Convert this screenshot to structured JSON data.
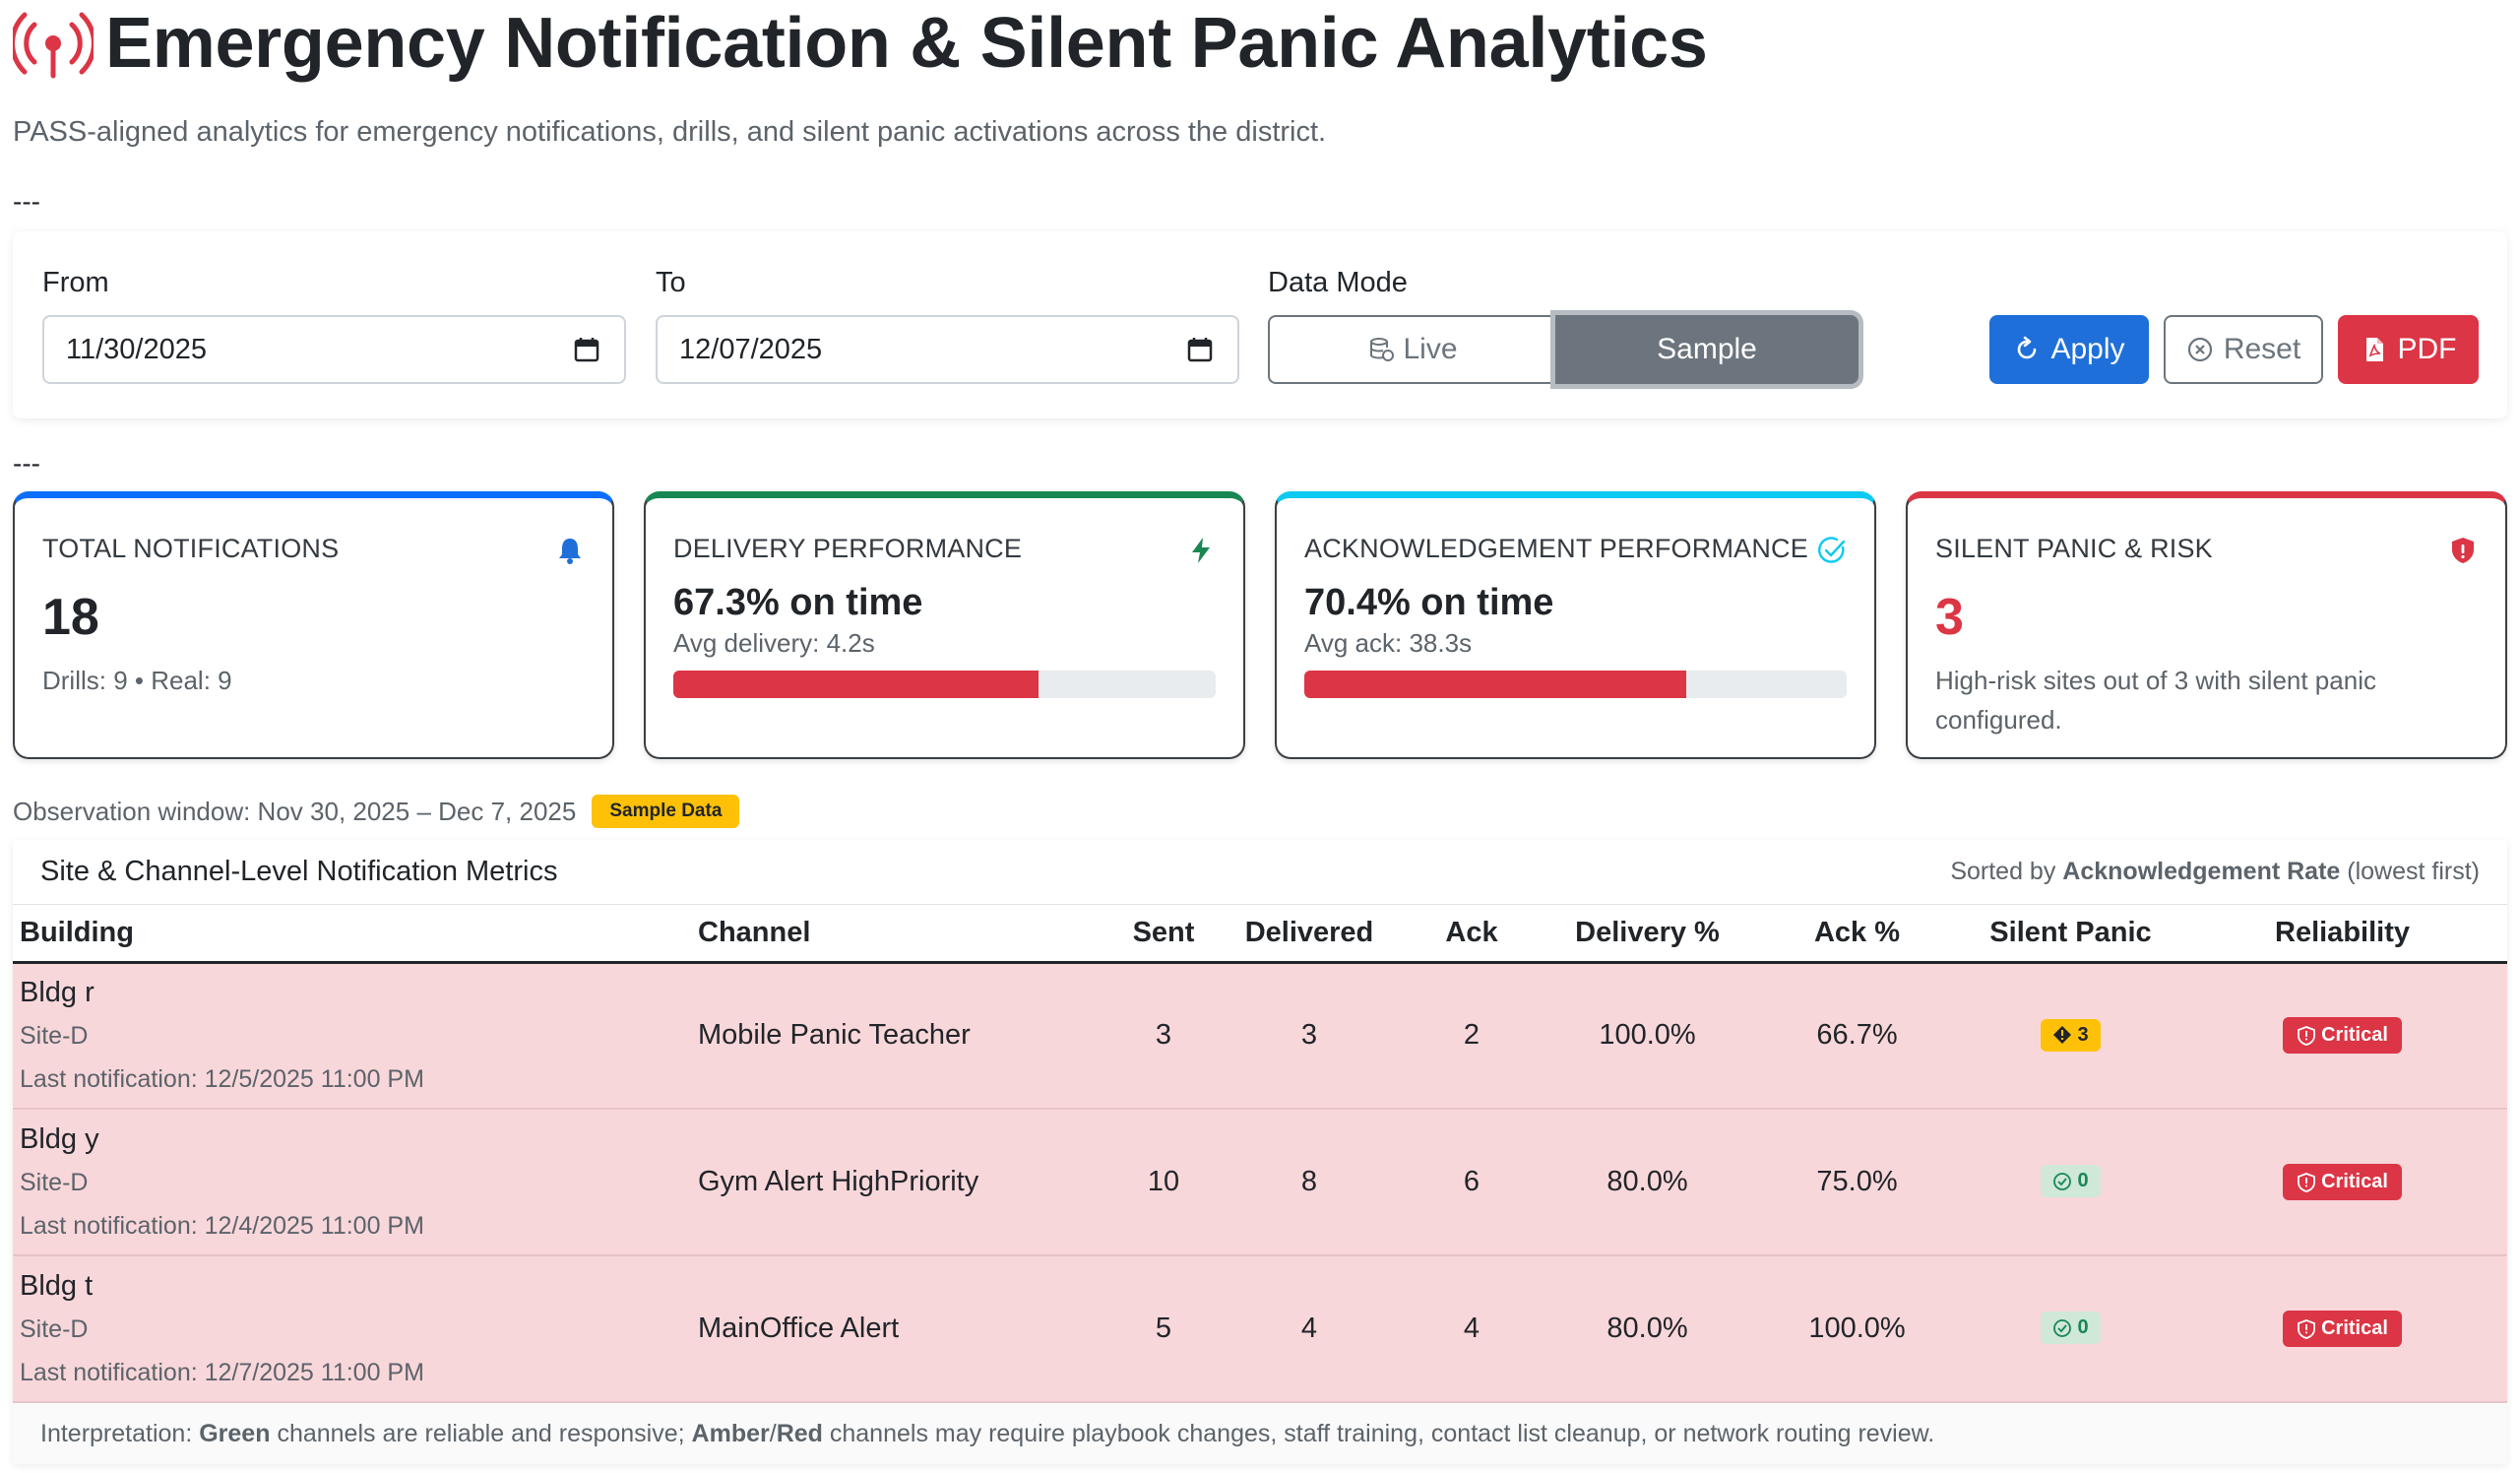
{
  "header": {
    "title": "Emergency Notification & Silent Panic Analytics",
    "subtitle": "PASS-aligned analytics for emergency notifications, drills, and silent panic activations across the district.",
    "divider": "---"
  },
  "filters": {
    "from_label": "From",
    "from_value": "11/30/2025",
    "to_label": "To",
    "to_value": "12/07/2025",
    "mode_label": "Data Mode",
    "mode_live": "Live",
    "mode_sample": "Sample",
    "apply_label": "Apply",
    "reset_label": "Reset",
    "pdf_label": "PDF"
  },
  "kpis": {
    "total": {
      "label": "TOTAL NOTIFICATIONS",
      "value": "18",
      "sub": "Drills: 9 • Real: 9",
      "icon": "bell-icon"
    },
    "delivery": {
      "label": "DELIVERY PERFORMANCE",
      "value": "67.3% on time",
      "sub": "Avg delivery: 4.2s",
      "progress": 0.673,
      "icon": "lightning-icon"
    },
    "ack": {
      "label": "ACKNOWLEDGEMENT PERFORMANCE",
      "value": "70.4% on time",
      "sub": "Avg ack: 38.3s",
      "progress": 0.704,
      "icon": "check-circle-icon"
    },
    "panic": {
      "label": "SILENT PANIC & RISK",
      "value": "3",
      "sub": "High-risk sites out of 3 with silent panic configured.",
      "icon": "shield-alert-icon"
    }
  },
  "observation": {
    "text": "Observation window: Nov 30, 2025 – Dec 7, 2025",
    "badge": "Sample Data"
  },
  "table": {
    "title": "Site & Channel-Level Notification Metrics",
    "sort_prefix": "Sorted by",
    "sort_field": "Acknowledgement Rate",
    "sort_suffix": "(lowest first)",
    "columns": [
      "Building",
      "Channel",
      "Sent",
      "Delivered",
      "Ack",
      "Delivery %",
      "Ack %",
      "Silent Panic",
      "Reliability"
    ],
    "rows": [
      {
        "building": "Bldg r",
        "site": "Site-D",
        "last": "Last notification: 12/5/2025 11:00 PM",
        "channel": "Mobile Panic Teacher",
        "sent": "3",
        "delivered": "3",
        "ack": "2",
        "delivery_pct": "100.0%",
        "ack_pct": "66.7%",
        "panic": "3",
        "panic_state": "warn",
        "reliability": "Critical"
      },
      {
        "building": "Bldg y",
        "site": "Site-D",
        "last": "Last notification: 12/4/2025 11:00 PM",
        "channel": "Gym Alert HighPriority",
        "sent": "10",
        "delivered": "8",
        "ack": "6",
        "delivery_pct": "80.0%",
        "ack_pct": "75.0%",
        "panic": "0",
        "panic_state": "ok",
        "reliability": "Critical"
      },
      {
        "building": "Bldg t",
        "site": "Site-D",
        "last": "Last notification: 12/7/2025 11:00 PM",
        "channel": "MainOffice Alert",
        "sent": "5",
        "delivered": "4",
        "ack": "4",
        "delivery_pct": "80.0%",
        "ack_pct": "100.0%",
        "panic": "0",
        "panic_state": "ok",
        "reliability": "Critical"
      }
    ],
    "interpretation": {
      "prefix": "Interpretation:",
      "green": "Green",
      "mid": "channels are reliable and responsive;",
      "amber": "Amber",
      "slash": "/",
      "red": "Red",
      "suffix": "channels may require playbook changes, staff training, contact list cleanup, or network routing review."
    }
  },
  "colors": {
    "primary": "#1e6fd9",
    "danger": "#dc3545",
    "warning": "#ffc107",
    "success": "#198754",
    "info": "#0dcaf0",
    "secondary": "#6c757d"
  }
}
